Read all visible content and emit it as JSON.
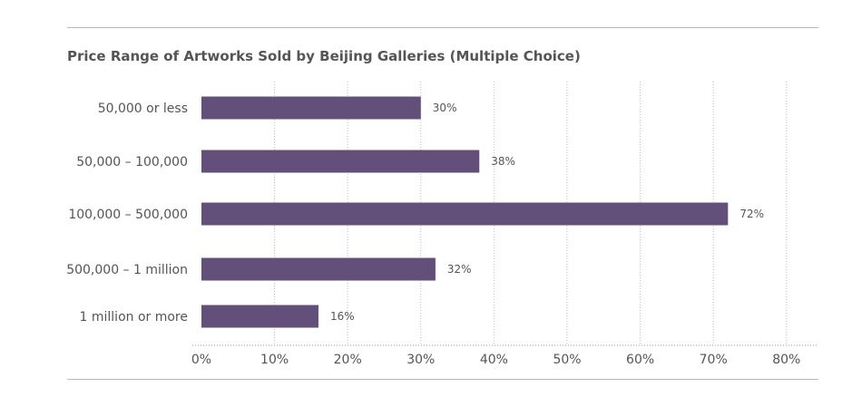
{
  "chart_data": {
    "type": "bar",
    "orientation": "horizontal",
    "title": "Price Range of Artworks Sold by Beijing Galleries (Multiple Choice)",
    "categories": [
      "50,000 or less",
      "50,000 – 100,000",
      "100,000 – 500,000",
      "500,000 – 1 million",
      "1 million or more"
    ],
    "values": [
      30,
      38,
      72,
      32,
      16
    ],
    "value_labels": [
      "30%",
      "38%",
      "72%",
      "32%",
      "16%"
    ],
    "x_ticks": [
      "0%",
      "10%",
      "20%",
      "30%",
      "40%",
      "50%",
      "60%",
      "70%",
      "80%"
    ],
    "xlim": [
      0,
      80
    ],
    "grid": "vertical dotted",
    "legend": "none",
    "colors": {
      "bar": "#62507a",
      "grid": "#bdbdbd",
      "axis": "#9e9e9e",
      "text": "#555555",
      "rule": "#b8b8b8"
    }
  }
}
